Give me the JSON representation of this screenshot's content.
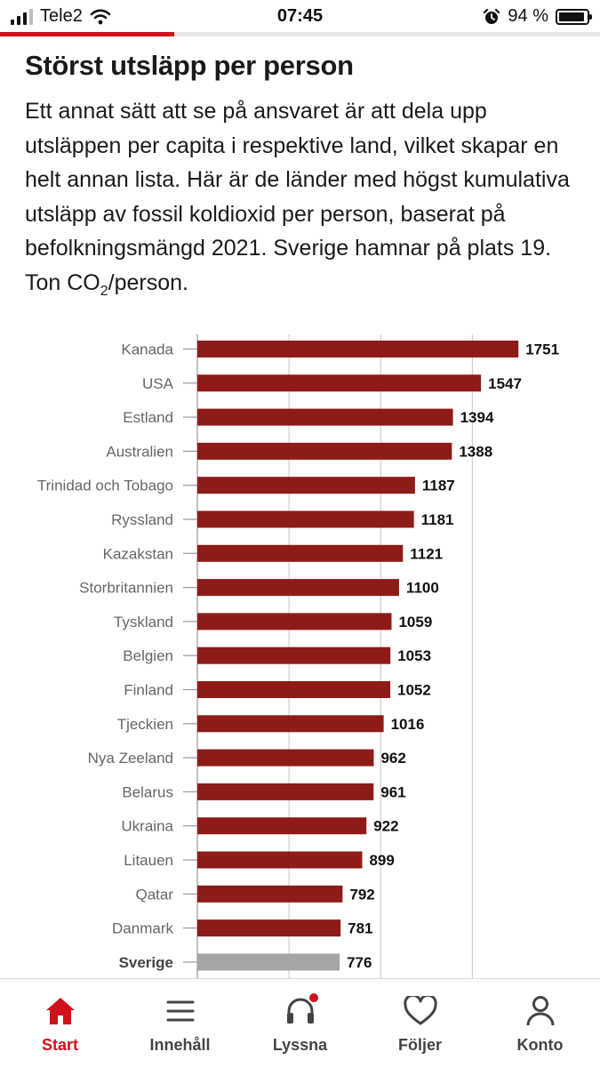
{
  "status": {
    "carrier": "Tele2",
    "time": "07:45",
    "battery": "94 %",
    "battery_level": 0.94
  },
  "reading_progress": 0.29,
  "article": {
    "title": "Störst utsläpp per person",
    "intro_main": "Ett annat sätt att se på ansvaret är att dela upp utsläppen per capita i respektive land, vilket skapar en helt annan lista. Här är de länder med högst kumulativa utsläpp av fossil koldioxid per person, baserat på befolkningsmängd 2021. Sverige hamnar på plats 19. Ton CO",
    "intro_sub": "2",
    "intro_end": "/person."
  },
  "chart_data": {
    "type": "bar",
    "orientation": "horizontal",
    "categories": [
      "Kanada",
      "USA",
      "Estland",
      "Australien",
      "Trinidad och Tobago",
      "Ryssland",
      "Kazakstan",
      "Storbritannien",
      "Tyskland",
      "Belgien",
      "Finland",
      "Tjeckien",
      "Nya Zeeland",
      "Belarus",
      "Ukraina",
      "Litauen",
      "Qatar",
      "Danmark",
      "Sverige"
    ],
    "values": [
      1751,
      1547,
      1394,
      1388,
      1187,
      1181,
      1121,
      1100,
      1059,
      1053,
      1052,
      1016,
      962,
      961,
      922,
      899,
      792,
      781,
      776
    ],
    "highlight": "Sverige",
    "xlim": [
      0,
      2000
    ],
    "gridlines": [
      0,
      500,
      1000,
      1500
    ],
    "bar_color": "#8e1b17",
    "highlight_color": "#a5a5a5",
    "grid": true
  },
  "tabs": [
    {
      "label": "Start",
      "icon": "home-icon",
      "active": true
    },
    {
      "label": "Innehåll",
      "icon": "menu-icon",
      "active": false
    },
    {
      "label": "Lyssna",
      "icon": "headphones-icon",
      "active": false
    },
    {
      "label": "Följer",
      "icon": "heart-icon",
      "active": false
    },
    {
      "label": "Konto",
      "icon": "person-icon",
      "active": false
    }
  ],
  "colors": {
    "accent": "#d0111b",
    "text": "#1a1a1a"
  }
}
